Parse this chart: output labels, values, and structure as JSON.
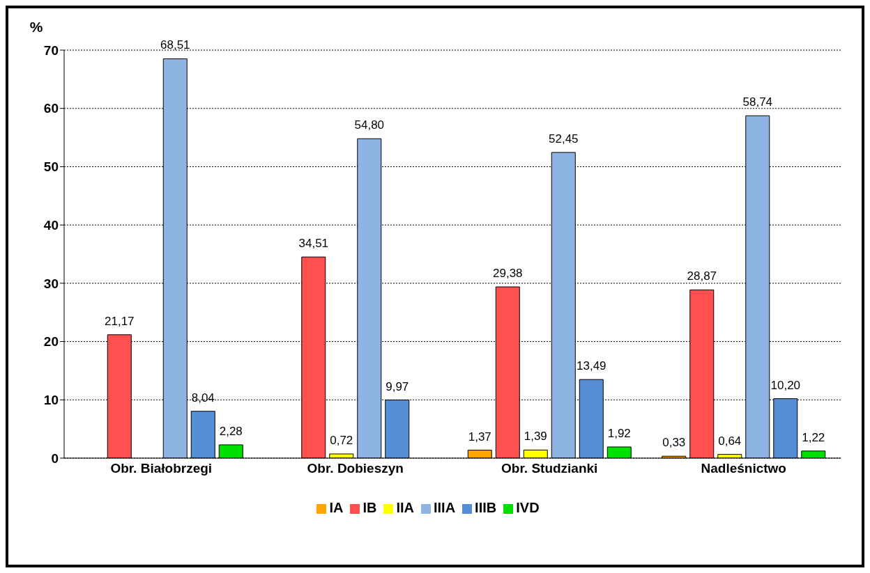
{
  "chart_data": {
    "type": "bar",
    "ylabel": "%",
    "categories": [
      "Obr. Białobrzegi",
      "Obr. Dobieszyn",
      "Obr. Studzianki",
      "Nadleśnictwo"
    ],
    "series": [
      {
        "name": "IA",
        "color": "#ffa500",
        "values": [
          null,
          null,
          1.37,
          0.33
        ],
        "value_labels": [
          null,
          null,
          "1,37",
          "0,33"
        ]
      },
      {
        "name": "IB",
        "color": "#ff5050",
        "values": [
          21.17,
          34.51,
          29.38,
          28.87
        ],
        "value_labels": [
          "21,17",
          "34,51",
          "29,38",
          "28,87"
        ]
      },
      {
        "name": "IIA",
        "color": "#ffff00",
        "values": [
          null,
          0.72,
          1.39,
          0.64
        ],
        "value_labels": [
          null,
          "0,72",
          "1,39",
          "0,64"
        ]
      },
      {
        "name": "IIIA",
        "color": "#8eb4e3",
        "values": [
          68.51,
          54.8,
          52.45,
          58.74
        ],
        "value_labels": [
          "68,51",
          "54,80",
          "52,45",
          "58,74"
        ]
      },
      {
        "name": "IIIB",
        "color": "#558ed5",
        "values": [
          8.04,
          9.97,
          13.49,
          10.2
        ],
        "value_labels": [
          "8,04",
          "9,97",
          "13,49",
          "10,20"
        ]
      },
      {
        "name": "IVD",
        "color": "#00e000",
        "values": [
          2.28,
          null,
          1.92,
          1.22
        ],
        "value_labels": [
          "2,28",
          null,
          "1,92",
          "1,22"
        ]
      }
    ],
    "ylim": [
      0,
      70
    ],
    "yticks": [
      0,
      10,
      20,
      30,
      40,
      50,
      60,
      70
    ],
    "grid": "y",
    "legend": "bottom"
  }
}
